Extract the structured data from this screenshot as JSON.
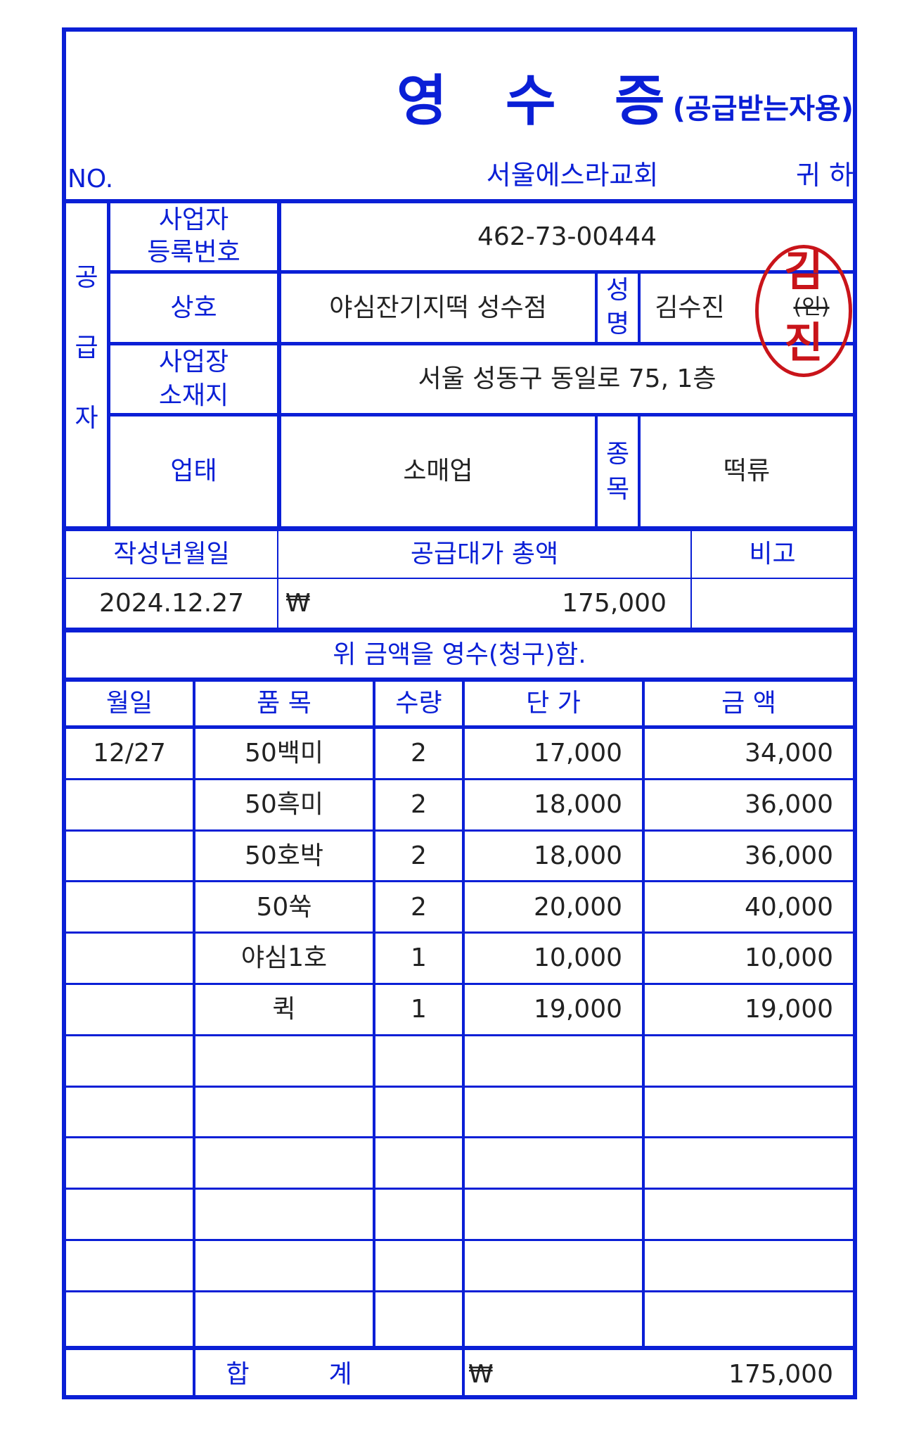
{
  "header": {
    "title": "영 수 증",
    "subtitle": "(공급받는자용)",
    "no_label": "NO.",
    "recipient": "서울에스라교회",
    "honorific": "귀 하"
  },
  "supplier": {
    "section_label": [
      "공",
      "급",
      "자"
    ],
    "reg_no_label_1": "사업자",
    "reg_no_label_2": "등록번호",
    "reg_no": "462-73-00444",
    "company_label": "상호",
    "company": "야심잔기지떡 성수점",
    "name_label_1": "성",
    "name_label_2": "명",
    "name": "김수진",
    "seal_text": "(인)",
    "address_label_1": "사업장",
    "address_label_2": "소재지",
    "address": "서울 성동구 동일로 75, 1층",
    "business_type_label": "업태",
    "business_type": "소매업",
    "item_label_1": "종",
    "item_label_2": "목",
    "item": "떡류"
  },
  "stamp": {
    "line1": "김",
    "line2": "진",
    "color": "#c9141a"
  },
  "summary": {
    "date_label": "작성년월일",
    "total_label": "공급대가 총액",
    "note_label": "비고",
    "date": "2024.12.27",
    "currency": "₩",
    "total": "175,000",
    "note": ""
  },
  "statement": "위 금액을 영수(청구)함.",
  "table": {
    "headers": [
      "월일",
      "품 목",
      "수량",
      "단 가",
      "금 액"
    ],
    "rows": [
      {
        "date": "12/27",
        "item": "50백미",
        "qty": "2",
        "price": "17,000",
        "amount": "34,000"
      },
      {
        "date": "",
        "item": "50흑미",
        "qty": "2",
        "price": "18,000",
        "amount": "36,000"
      },
      {
        "date": "",
        "item": "50호박",
        "qty": "2",
        "price": "18,000",
        "amount": "36,000"
      },
      {
        "date": "",
        "item": "50쑥",
        "qty": "2",
        "price": "20,000",
        "amount": "40,000"
      },
      {
        "date": "",
        "item": "야심1호",
        "qty": "1",
        "price": "10,000",
        "amount": "10,000"
      },
      {
        "date": "",
        "item": "퀵",
        "qty": "1",
        "price": "19,000",
        "amount": "19,000"
      },
      {
        "date": "",
        "item": "",
        "qty": "",
        "price": "",
        "amount": ""
      },
      {
        "date": "",
        "item": "",
        "qty": "",
        "price": "",
        "amount": ""
      },
      {
        "date": "",
        "item": "",
        "qty": "",
        "price": "",
        "amount": ""
      },
      {
        "date": "",
        "item": "",
        "qty": "",
        "price": "",
        "amount": ""
      },
      {
        "date": "",
        "item": "",
        "qty": "",
        "price": "",
        "amount": ""
      },
      {
        "date": "",
        "item": "",
        "qty": "",
        "price": "",
        "amount": ""
      }
    ],
    "total_label_1": "합",
    "total_label_2": "계",
    "total_currency": "₩",
    "total_amount": "175,000"
  },
  "colors": {
    "ink": "#0a1fd6",
    "text": "#222222",
    "stamp": "#c9141a"
  }
}
